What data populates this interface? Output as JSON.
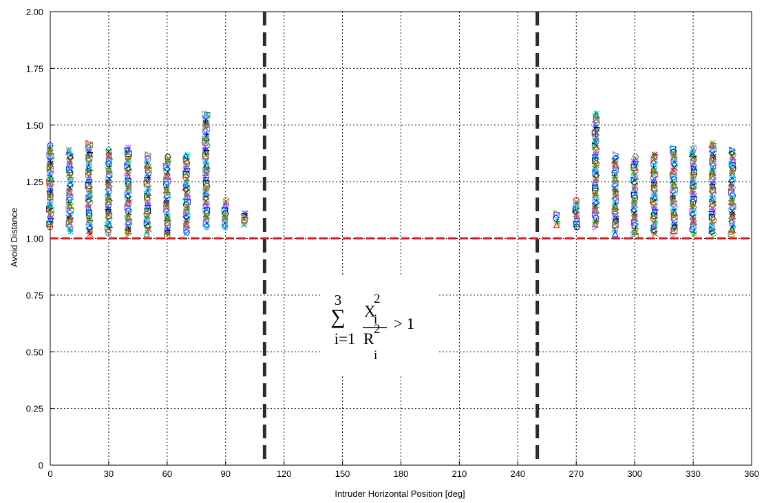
{
  "chart_data": {
    "type": "scatter",
    "xlabel": "Intruder Horizontal Position [deg]",
    "ylabel": "Avoid Distance",
    "xlim": [
      0,
      360
    ],
    "ylim": [
      0,
      2
    ],
    "grid": true,
    "x_ticks": [
      "0",
      "30",
      "60",
      "90",
      "120",
      "150",
      "180",
      "210",
      "240",
      "270",
      "300",
      "330",
      "360"
    ],
    "y_ticks": [
      "0",
      "0.25",
      "0.50",
      "0.75",
      "1.00",
      "1.25",
      "1.50",
      "1.75",
      "2.00"
    ],
    "threshold_y": 1.0,
    "threshold_color": "#e8141e",
    "boundary_lines_x": [
      110,
      250
    ],
    "boundary_color": "#2b2b2b",
    "marker_colors": [
      "#0000ff",
      "#00aa00",
      "#ff0000",
      "#00bfbf",
      "#ff00ff",
      "#808000",
      "#000000",
      "#00ffff",
      "#7f7fff",
      "#33cc33"
    ],
    "series": [
      {
        "x": 0,
        "min": 1.05,
        "max": 1.41
      },
      {
        "x": 10,
        "min": 1.03,
        "max": 1.39
      },
      {
        "x": 20,
        "min": 1.02,
        "max": 1.42
      },
      {
        "x": 30,
        "min": 1.02,
        "max": 1.39
      },
      {
        "x": 40,
        "min": 1.02,
        "max": 1.4
      },
      {
        "x": 50,
        "min": 1.02,
        "max": 1.37
      },
      {
        "x": 60,
        "min": 1.01,
        "max": 1.36
      },
      {
        "x": 70,
        "min": 1.02,
        "max": 1.37
      },
      {
        "x": 80,
        "min": 1.05,
        "max": 1.55
      },
      {
        "x": 90,
        "min": 1.05,
        "max": 1.17
      },
      {
        "x": 100,
        "min": 1.06,
        "max": 1.11
      },
      {
        "x": 260,
        "min": 1.06,
        "max": 1.11
      },
      {
        "x": 270,
        "min": 1.05,
        "max": 1.17
      },
      {
        "x": 280,
        "min": 1.05,
        "max": 1.55
      },
      {
        "x": 290,
        "min": 1.02,
        "max": 1.37
      },
      {
        "x": 300,
        "min": 1.01,
        "max": 1.36
      },
      {
        "x": 310,
        "min": 1.02,
        "max": 1.37
      },
      {
        "x": 320,
        "min": 1.02,
        "max": 1.4
      },
      {
        "x": 330,
        "min": 1.02,
        "max": 1.4
      },
      {
        "x": 340,
        "min": 1.02,
        "max": 1.42
      },
      {
        "x": 350,
        "min": 1.02,
        "max": 1.39
      }
    ],
    "outliers": [
      {
        "x": 80,
        "y": 1.55
      },
      {
        "x": 80,
        "y": 1.46
      },
      {
        "x": 80,
        "y": 1.43
      },
      {
        "x": 80,
        "y": 1.29
      },
      {
        "x": 80,
        "y": 1.22
      },
      {
        "x": 280,
        "y": 1.55
      },
      {
        "x": 280,
        "y": 1.46
      },
      {
        "x": 280,
        "y": 1.43
      },
      {
        "x": 280,
        "y": 1.29
      },
      {
        "x": 280,
        "y": 1.22
      }
    ]
  },
  "formula": {
    "sum_symbol": "∑",
    "upper_limit": "3",
    "lower_limit": "i=1",
    "numerator": "X",
    "numerator_sup": "2",
    "numerator_sub": "i",
    "denominator": "R",
    "denominator_sup": "2",
    "denominator_sub": "i",
    "relation": "> 1"
  }
}
